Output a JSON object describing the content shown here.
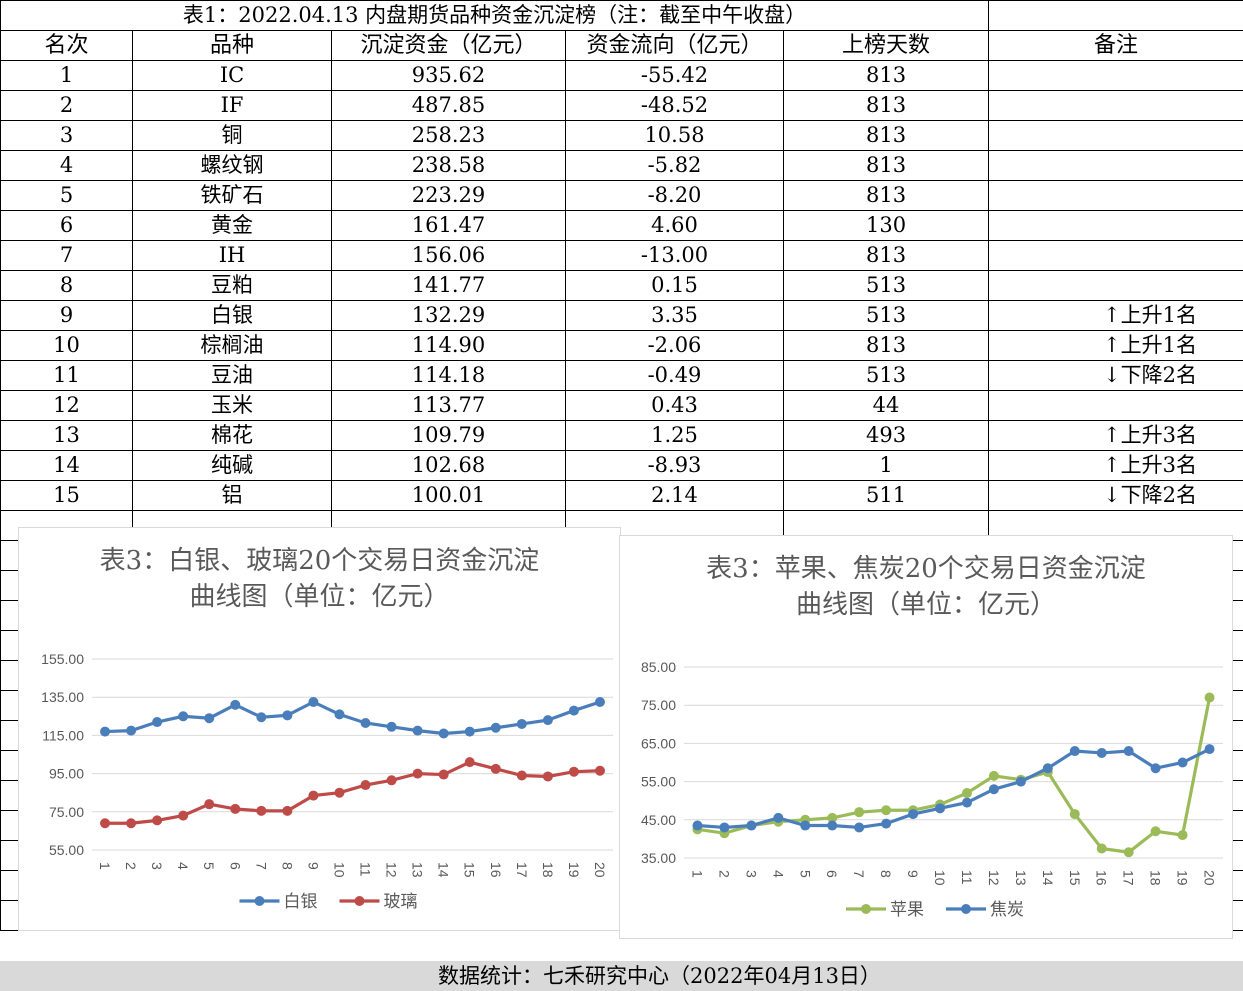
{
  "table": {
    "title": "表1：2022.04.13 内盘期货品种资金沉淀榜（注：截至中午收盘）",
    "headers": [
      "名次",
      "品种",
      "沉淀资金（亿元）",
      "资金流向（亿元）",
      "上榜天数",
      "备注"
    ],
    "rows": [
      {
        "rank": "1",
        "name": "IC",
        "funds": "935.62",
        "flow": "-55.42",
        "days": "813",
        "note": ""
      },
      {
        "rank": "2",
        "name": "IF",
        "funds": "487.85",
        "flow": "-48.52",
        "days": "813",
        "note": ""
      },
      {
        "rank": "3",
        "name": "铜",
        "funds": "258.23",
        "flow": "10.58",
        "days": "813",
        "note": ""
      },
      {
        "rank": "4",
        "name": "螺纹钢",
        "funds": "238.58",
        "flow": "-5.82",
        "days": "813",
        "note": ""
      },
      {
        "rank": "5",
        "name": "铁矿石",
        "funds": "223.29",
        "flow": "-8.20",
        "days": "813",
        "note": ""
      },
      {
        "rank": "6",
        "name": "黄金",
        "funds": "161.47",
        "flow": "4.60",
        "days": "130",
        "note": ""
      },
      {
        "rank": "7",
        "name": "IH",
        "funds": "156.06",
        "flow": "-13.00",
        "days": "813",
        "note": ""
      },
      {
        "rank": "8",
        "name": "豆粕",
        "funds": "141.77",
        "flow": "0.15",
        "days": "513",
        "note": ""
      },
      {
        "rank": "9",
        "name": "白银",
        "funds": "132.29",
        "flow": "3.35",
        "days": "513",
        "note": "↑上升1名"
      },
      {
        "rank": "10",
        "name": "棕榈油",
        "funds": "114.90",
        "flow": "-2.06",
        "days": "813",
        "note": "↑上升1名"
      },
      {
        "rank": "11",
        "name": "豆油",
        "funds": "114.18",
        "flow": "-0.49",
        "days": "513",
        "note": "↓下降2名"
      },
      {
        "rank": "12",
        "name": "玉米",
        "funds": "113.77",
        "flow": "0.43",
        "days": "44",
        "note": ""
      },
      {
        "rank": "13",
        "name": "棉花",
        "funds": "109.79",
        "flow": "1.25",
        "days": "493",
        "note": "↑上升3名"
      },
      {
        "rank": "14",
        "name": "纯碱",
        "funds": "102.68",
        "flow": "-8.93",
        "days": "1",
        "note": "↑上升3名"
      },
      {
        "rank": "15",
        "name": "铝",
        "funds": "100.01",
        "flow": "2.14",
        "days": "511",
        "note": "↓下降2名"
      }
    ]
  },
  "footer": "数据统计：七禾研究中心（2022年04月13日）",
  "chart_data": [
    {
      "type": "line",
      "title": "表3：白银、玻璃20个交易日资金沉淀曲线图（单位：亿元）",
      "title_lines": [
        "表3：白银、玻璃20个交易日资金沉淀",
        "曲线图（单位：亿元）"
      ],
      "x": [
        "1",
        "2",
        "3",
        "4",
        "5",
        "6",
        "7",
        "8",
        "9",
        "10",
        "11",
        "12",
        "13",
        "14",
        "15",
        "16",
        "17",
        "18",
        "19",
        "20"
      ],
      "yticks": [
        "55.00",
        "75.00",
        "95.00",
        "115.00",
        "135.00",
        "155.00"
      ],
      "ylim": [
        55,
        155
      ],
      "legend_position": "bottom",
      "series": [
        {
          "name": "白银",
          "color": "#4a7ebb",
          "values": [
            117,
            117.5,
            122,
            125,
            124,
            131,
            124.5,
            125.5,
            132.5,
            126,
            121.5,
            119.5,
            117.5,
            116,
            117,
            119,
            121,
            123,
            128,
            132.5
          ]
        },
        {
          "name": "玻璃",
          "color": "#be4b48",
          "values": [
            69,
            69,
            70.5,
            73,
            79,
            76.5,
            75.5,
            75.5,
            83.5,
            85,
            89,
            91.5,
            95,
            94.5,
            101,
            97.5,
            94,
            93.5,
            96,
            96.5
          ]
        }
      ]
    },
    {
      "type": "line",
      "title": "表3：苹果、焦炭20个交易日资金沉淀曲线图（单位：亿元）",
      "title_lines": [
        "表3：苹果、焦炭20个交易日资金沉淀",
        "曲线图（单位：亿元）"
      ],
      "x": [
        "1",
        "2",
        "3",
        "4",
        "5",
        "6",
        "7",
        "8",
        "9",
        "10",
        "11",
        "12",
        "13",
        "14",
        "15",
        "16",
        "17",
        "18",
        "19",
        "20"
      ],
      "yticks": [
        "35.00",
        "45.00",
        "55.00",
        "65.00",
        "75.00",
        "85.00"
      ],
      "ylim": [
        35,
        85
      ],
      "legend_position": "bottom",
      "series": [
        {
          "name": "苹果",
          "color": "#9bbb59",
          "values": [
            42.5,
            41.5,
            43.5,
            44.5,
            45,
            45.5,
            47,
            47.5,
            47.5,
            49,
            52,
            56.5,
            55.5,
            57.5,
            46.5,
            37.5,
            36.5,
            42,
            41,
            77
          ]
        },
        {
          "name": "焦炭",
          "color": "#4a7ebb",
          "values": [
            43.5,
            43,
            43.5,
            45.5,
            43.5,
            43.5,
            43,
            44,
            46.5,
            48,
            49.5,
            53,
            55,
            58.5,
            63,
            62.5,
            63,
            58.5,
            60,
            63.5
          ]
        }
      ]
    }
  ]
}
